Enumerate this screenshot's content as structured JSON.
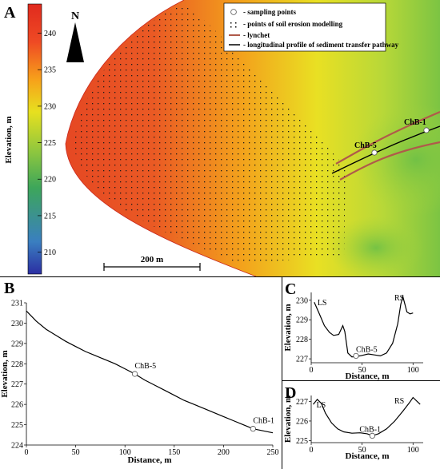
{
  "panel_a": {
    "label": "A",
    "north": "N",
    "scalebar": "200 m",
    "colorbar": {
      "title": "Elevation, m",
      "min": 207,
      "max": 244,
      "ticks": [
        210,
        215,
        220,
        225,
        230,
        235,
        240
      ],
      "colors": [
        "#2b2ea2",
        "#3a7fc0",
        "#3da65a",
        "#8cc63f",
        "#e7e01f",
        "#f7a11a",
        "#ef4a24",
        "#e02a1e"
      ]
    },
    "legend": {
      "items": [
        {
          "symbol": "circle-icon",
          "text": "- sampling points"
        },
        {
          "symbol": "dots-icon",
          "text": "- points of soil erosion modelling"
        },
        {
          "symbol": "lynchet-line-icon",
          "text": "- lynchet",
          "color": "#b05a4a"
        },
        {
          "symbol": "profile-line-icon",
          "text": "- longitudinal profile of sediment transfer pathway",
          "color": "#000000"
        }
      ]
    },
    "points": [
      {
        "label": "ChB-5"
      },
      {
        "label": "ChB-1"
      }
    ]
  },
  "panel_b": {
    "label": "B",
    "xlabel": "Distance, m",
    "ylabel": "Elevation, m",
    "xlim": [
      0,
      250
    ],
    "ylim": [
      224,
      231
    ],
    "xticks": [
      0,
      50,
      100,
      150,
      200,
      250
    ],
    "yticks": [
      224,
      225,
      226,
      227,
      228,
      229,
      230,
      231
    ],
    "profile": [
      [
        0,
        230.6
      ],
      [
        10,
        230.1
      ],
      [
        20,
        229.7
      ],
      [
        30,
        229.4
      ],
      [
        40,
        229.1
      ],
      [
        50,
        228.85
      ],
      [
        60,
        228.6
      ],
      [
        70,
        228.4
      ],
      [
        80,
        228.2
      ],
      [
        90,
        228.0
      ],
      [
        100,
        227.75
      ],
      [
        110,
        227.5
      ],
      [
        120,
        227.2
      ],
      [
        130,
        226.95
      ],
      [
        140,
        226.7
      ],
      [
        150,
        226.45
      ],
      [
        160,
        226.2
      ],
      [
        170,
        226.0
      ],
      [
        180,
        225.8
      ],
      [
        190,
        225.6
      ],
      [
        200,
        225.4
      ],
      [
        210,
        225.2
      ],
      [
        220,
        225.0
      ],
      [
        230,
        224.8
      ],
      [
        240,
        224.7
      ],
      [
        250,
        224.6
      ]
    ],
    "points": [
      {
        "label": "ChB-5",
        "x": 110,
        "y": 227.5
      },
      {
        "label": "ChB-1",
        "x": 230,
        "y": 224.8
      }
    ]
  },
  "panel_c": {
    "label": "C",
    "xlabel": "Distance, m",
    "ylabel": "Elevation, m",
    "xlim": [
      0,
      110
    ],
    "ylim": [
      226.8,
      230.4
    ],
    "xticks": [
      0,
      50,
      100
    ],
    "yticks": [
      227,
      228,
      229,
      230
    ],
    "side_left": "LS",
    "side_right": "RS",
    "profile": [
      [
        3,
        229.9
      ],
      [
        8,
        229.3
      ],
      [
        13,
        228.7
      ],
      [
        18,
        228.35
      ],
      [
        22,
        228.2
      ],
      [
        27,
        228.25
      ],
      [
        31,
        228.7
      ],
      [
        33,
        228.4
      ],
      [
        36,
        227.3
      ],
      [
        40,
        227.1
      ],
      [
        48,
        227.15
      ],
      [
        56,
        227.25
      ],
      [
        62,
        227.2
      ],
      [
        68,
        227.15
      ],
      [
        74,
        227.3
      ],
      [
        80,
        227.8
      ],
      [
        85,
        228.8
      ],
      [
        88,
        229.8
      ],
      [
        90,
        230.2
      ],
      [
        92,
        229.8
      ],
      [
        94,
        229.4
      ],
      [
        97,
        229.3
      ],
      [
        100,
        229.35
      ]
    ],
    "points": [
      {
        "label": "ChB-5",
        "x": 44,
        "y": 227.15
      }
    ]
  },
  "panel_d": {
    "label": "D",
    "xlabel": "Distance, m",
    "ylabel": "Elevation, m",
    "xlim": [
      0,
      110
    ],
    "ylim": [
      224.9,
      227.3
    ],
    "xticks": [
      0,
      50,
      100
    ],
    "yticks": [
      225,
      226,
      227
    ],
    "side_left": "LS",
    "side_right": "RS",
    "profile": [
      [
        2,
        226.85
      ],
      [
        6,
        227.1
      ],
      [
        10,
        226.9
      ],
      [
        14,
        226.4
      ],
      [
        20,
        225.9
      ],
      [
        26,
        225.6
      ],
      [
        32,
        225.45
      ],
      [
        40,
        225.38
      ],
      [
        48,
        225.4
      ],
      [
        55,
        225.35
      ],
      [
        60,
        225.25
      ],
      [
        66,
        225.35
      ],
      [
        74,
        225.6
      ],
      [
        82,
        226.0
      ],
      [
        90,
        226.5
      ],
      [
        96,
        226.9
      ],
      [
        100,
        227.2
      ],
      [
        104,
        227.0
      ],
      [
        107,
        226.85
      ]
    ],
    "points": [
      {
        "label": "ChB-1",
        "x": 60,
        "y": 225.25
      }
    ]
  }
}
